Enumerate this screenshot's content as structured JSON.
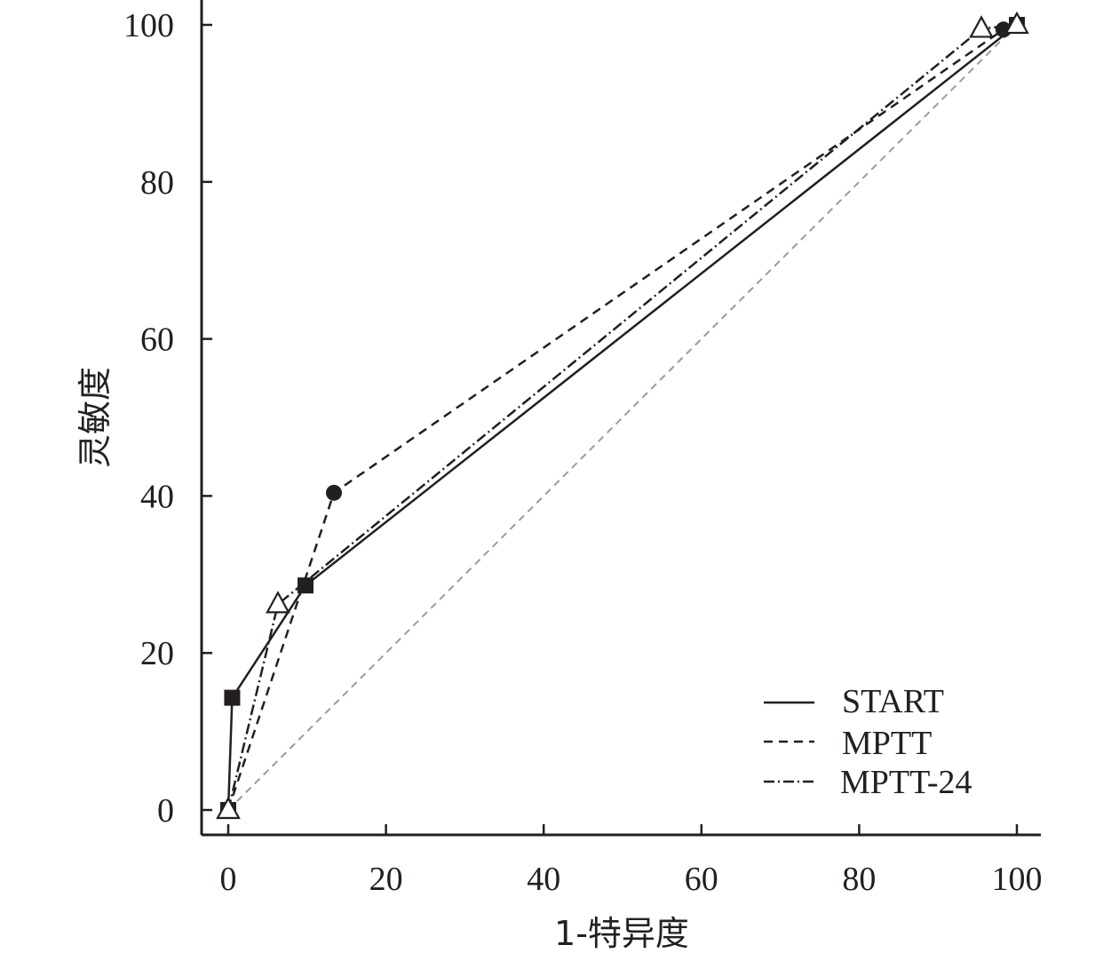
{
  "chart_data": {
    "type": "line",
    "title": "",
    "xlabel": "1-特异度",
    "ylabel": "灵敏度",
    "xlim": [
      0,
      100
    ],
    "ylim": [
      0,
      100
    ],
    "x_ticks": [
      "0",
      "20",
      "40",
      "60",
      "80",
      "100"
    ],
    "y_ticks": [
      "0",
      "20",
      "40",
      "60",
      "80",
      "100"
    ],
    "grid": false,
    "legend_position": "bottom-right",
    "reference_line": {
      "x": [
        0,
        100
      ],
      "y": [
        0,
        100
      ],
      "color": "#9b9b9b",
      "style": "dashed"
    },
    "series": [
      {
        "name": "START",
        "style": "solid",
        "marker": "filled-square",
        "color": "#231f20",
        "x": [
          0,
          0.5,
          9.8,
          100
        ],
        "y": [
          0,
          14.3,
          28.6,
          100
        ]
      },
      {
        "name": "MPTT",
        "style": "dashed",
        "marker": "filled-circle",
        "color": "#231f20",
        "x": [
          0,
          13.4,
          98.3,
          100
        ],
        "y": [
          0,
          40.4,
          99.4,
          100
        ]
      },
      {
        "name": "MPTT-24",
        "style": "dashdot",
        "marker": "open-triangle",
        "color": "#231f20",
        "x": [
          0,
          6.3,
          95.5,
          100
        ],
        "y": [
          0,
          26.2,
          99.5,
          100
        ]
      }
    ]
  }
}
